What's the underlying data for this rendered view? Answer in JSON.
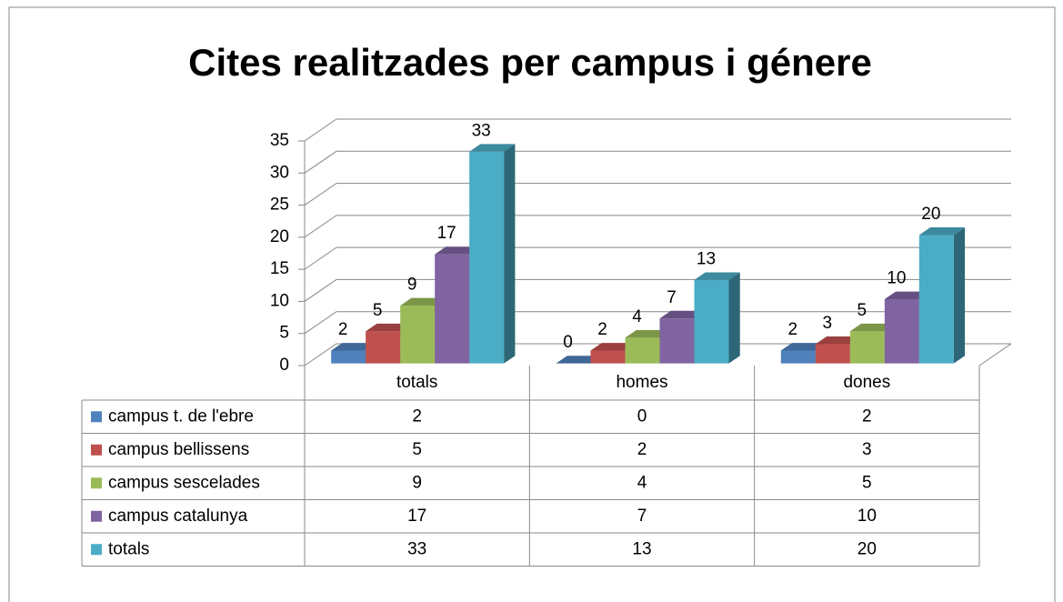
{
  "chart_data": {
    "type": "bar3d",
    "title": "Cites realitzades per campus i génere",
    "categories": [
      "totals",
      "homes",
      "dones"
    ],
    "series": [
      {
        "name": "campus t. de l'ebre",
        "color": "#4f81bd",
        "values": [
          2,
          0,
          2
        ]
      },
      {
        "name": "campus bellissens",
        "color": "#c0504d",
        "values": [
          5,
          2,
          3
        ]
      },
      {
        "name": "campus sescelades",
        "color": "#9bbb59",
        "values": [
          9,
          4,
          5
        ]
      },
      {
        "name": "campus catalunya",
        "color": "#8064a2",
        "values": [
          17,
          7,
          10
        ]
      },
      {
        "name": "totals",
        "color": "#4bacc6",
        "values": [
          33,
          13,
          20
        ]
      }
    ],
    "ylim": [
      0,
      35
    ],
    "yticks": [
      0,
      5,
      10,
      15,
      20,
      25,
      30,
      35
    ],
    "grid": true,
    "data_table": true
  }
}
